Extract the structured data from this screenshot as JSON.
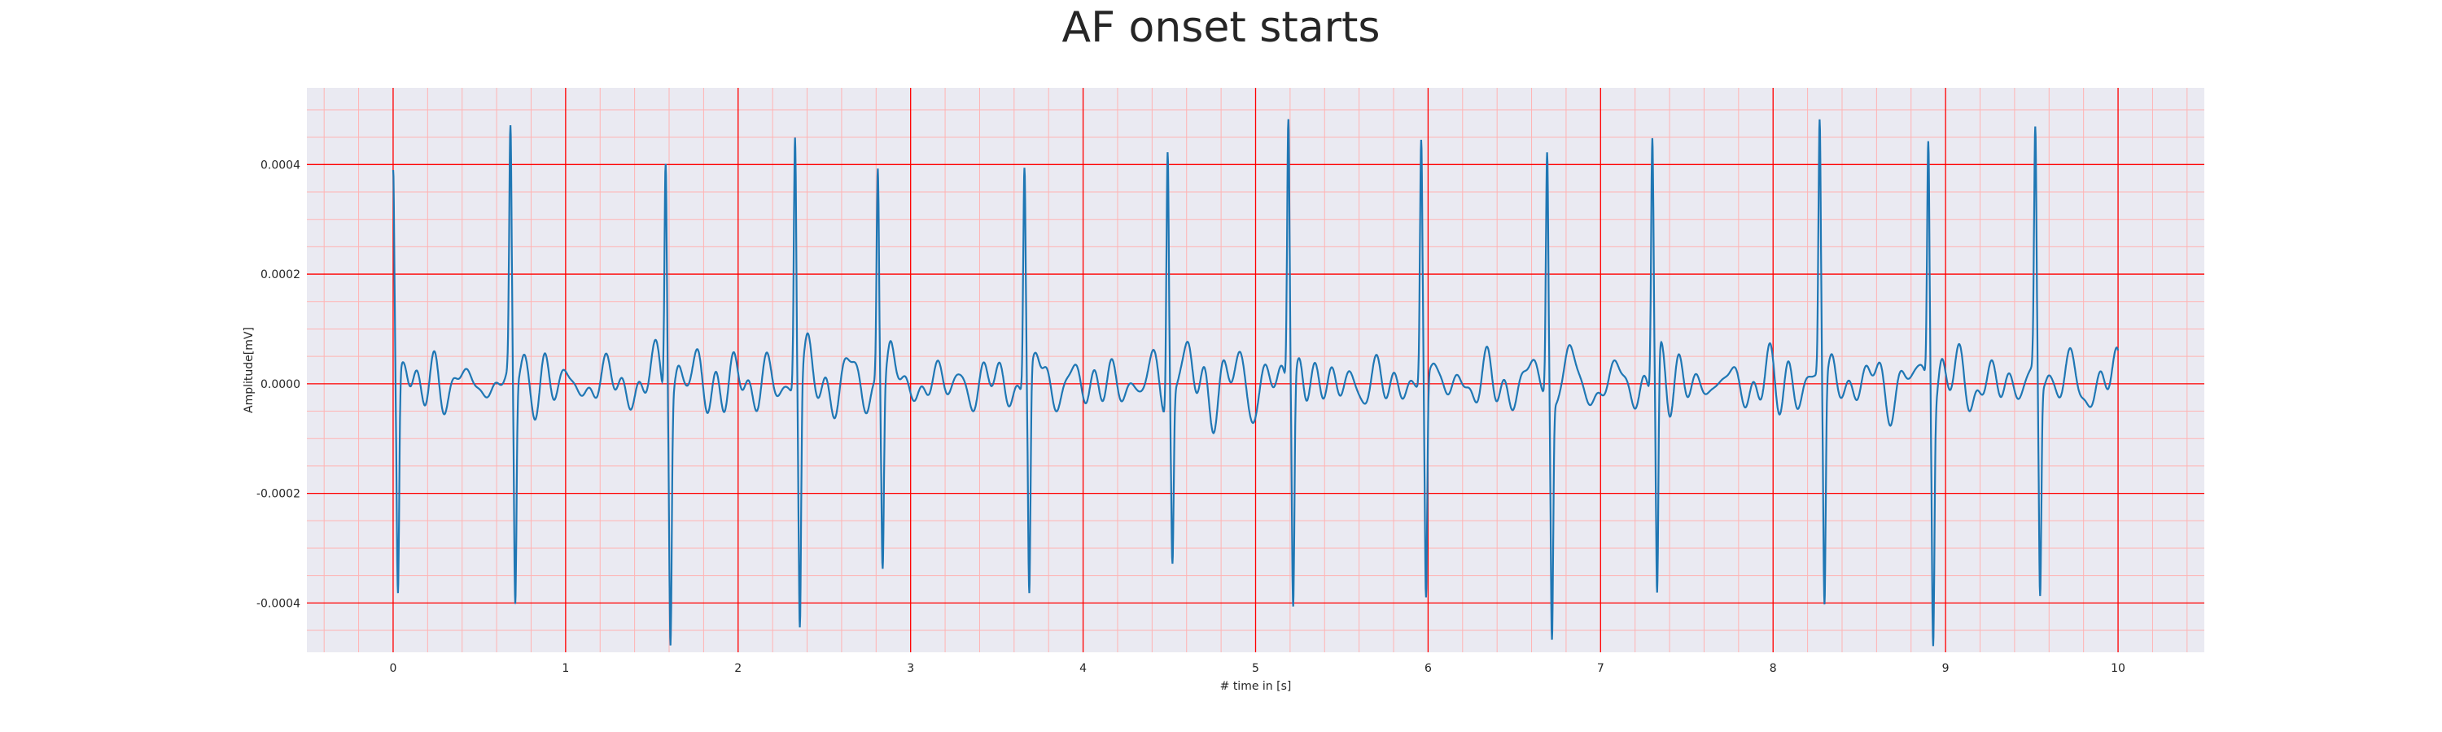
{
  "chart_data": {
    "type": "line",
    "title": "AF onset starts",
    "xlabel": "# time in [s]",
    "ylabel": "Amplitude[mV]",
    "xlim": [
      -0.5,
      10.5
    ],
    "ylim": [
      -0.00049,
      0.00054
    ],
    "xticks": [
      0,
      1,
      2,
      3,
      4,
      5,
      6,
      7,
      8,
      9,
      10
    ],
    "xtick_labels": [
      "0",
      "1",
      "2",
      "3",
      "4",
      "5",
      "6",
      "7",
      "8",
      "9",
      "10"
    ],
    "yticks": [
      -0.0004,
      -0.0002,
      0.0,
      0.0002,
      0.0004
    ],
    "ytick_labels": [
      "-0.0004",
      "-0.0002",
      "0.0000",
      "0.0002",
      "0.0004"
    ],
    "grid": true,
    "grid_color": "#ff0000",
    "minor_grid_color": "#ffb3b3",
    "background_color": "#eaeaf2",
    "line_color": "#1f77b4",
    "beats": [
      {
        "t": 0.0,
        "r": 0.00039,
        "s": -0.0004
      },
      {
        "t": 0.68,
        "r": 0.00044,
        "s": -0.00041
      },
      {
        "t": 1.58,
        "r": 0.00045,
        "s": -0.00043
      },
      {
        "t": 2.33,
        "r": 0.00047,
        "s": -0.00044
      },
      {
        "t": 2.81,
        "r": 0.0004,
        "s": -0.00032
      },
      {
        "t": 3.66,
        "r": 0.00041,
        "s": -0.0004
      },
      {
        "t": 4.49,
        "r": 0.00047,
        "s": -0.00031
      },
      {
        "t": 5.19,
        "r": 0.0005,
        "s": -0.0004
      },
      {
        "t": 5.96,
        "r": 0.00044,
        "s": -0.00041
      },
      {
        "t": 6.69,
        "r": 0.00044,
        "s": -0.00044
      },
      {
        "t": 7.3,
        "r": 0.00046,
        "s": -0.00043
      },
      {
        "t": 8.27,
        "r": 0.00047,
        "s": -0.00041
      },
      {
        "t": 8.9,
        "r": 0.00046,
        "s": -0.00042
      },
      {
        "t": 9.52,
        "r": 0.00044,
        "s": -0.00039
      }
    ],
    "baseline_fibrillation_amplitude": 3e-05,
    "duration_s": 10.0
  }
}
